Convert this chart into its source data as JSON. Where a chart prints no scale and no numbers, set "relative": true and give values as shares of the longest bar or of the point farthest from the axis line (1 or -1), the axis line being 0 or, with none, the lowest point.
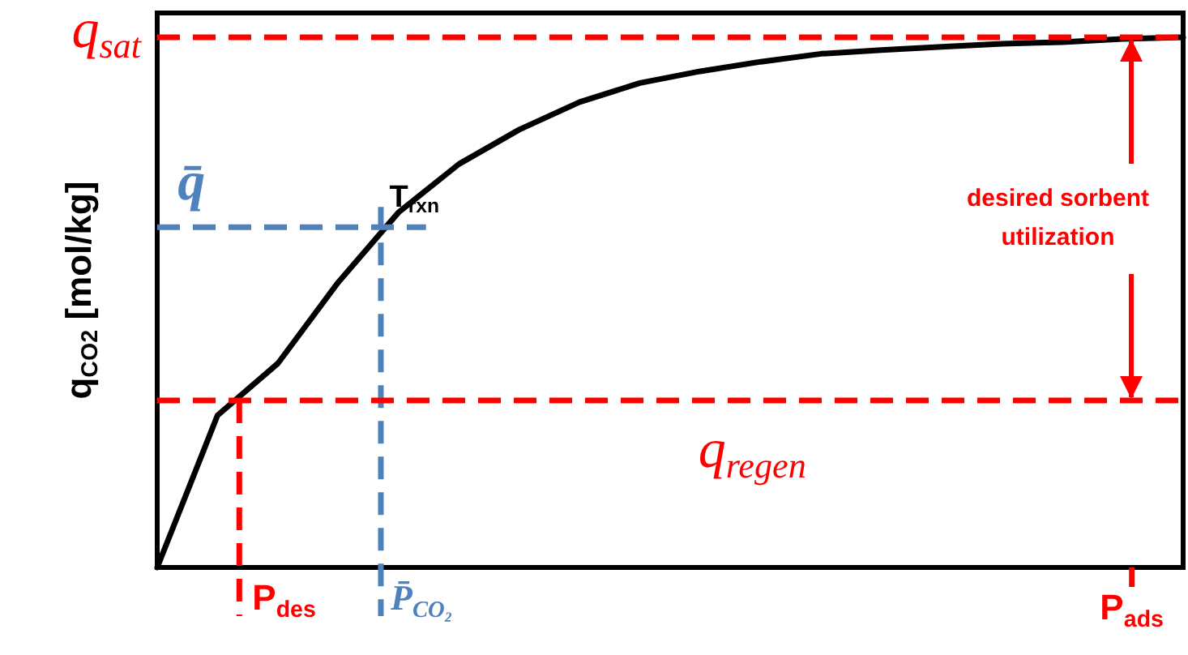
{
  "chart_data": {
    "type": "line",
    "relative": true,
    "ylabel": "q$_{CO2}$ [mol/kg]",
    "categories": [
      null,
      null,
      null,
      null,
      null,
      null,
      null,
      null,
      null,
      null,
      null,
      null,
      null,
      null,
      null,
      null,
      null,
      null
    ],
    "series": [
      {
        "color": "#000000",
        "values": [
          0,
          0.287,
          0.385,
          0.538,
          0.67,
          0.761,
          0.826,
          0.878,
          0.914,
          0.936,
          0.954,
          0.969,
          0.976,
          0.982,
          0.988,
          0.991,
          0.997,
          1
        ]
      }
    ],
    "ref_lines": [
      {
        "axis": "y",
        "value": 1,
        "label": "q$_{sat}$",
        "color": "#ff0000",
        "line_style": "dashed"
      },
      {
        "axis": "y",
        "value": 0.315,
        "label": "q$_{regen}$",
        "color": "#ff0000",
        "line_style": "dashed"
      },
      {
        "axis": "y",
        "value": 0.642,
        "label": "q̄",
        "color": "#4f81bd",
        "line_style": "dashed"
      }
    ],
    "annotations": [
      "T$_{rxn}$",
      "desired sorbent utilization",
      "P$_{des}$",
      "P̄$_{CO₂}$",
      "P$_{ads}$"
    ]
  }
}
